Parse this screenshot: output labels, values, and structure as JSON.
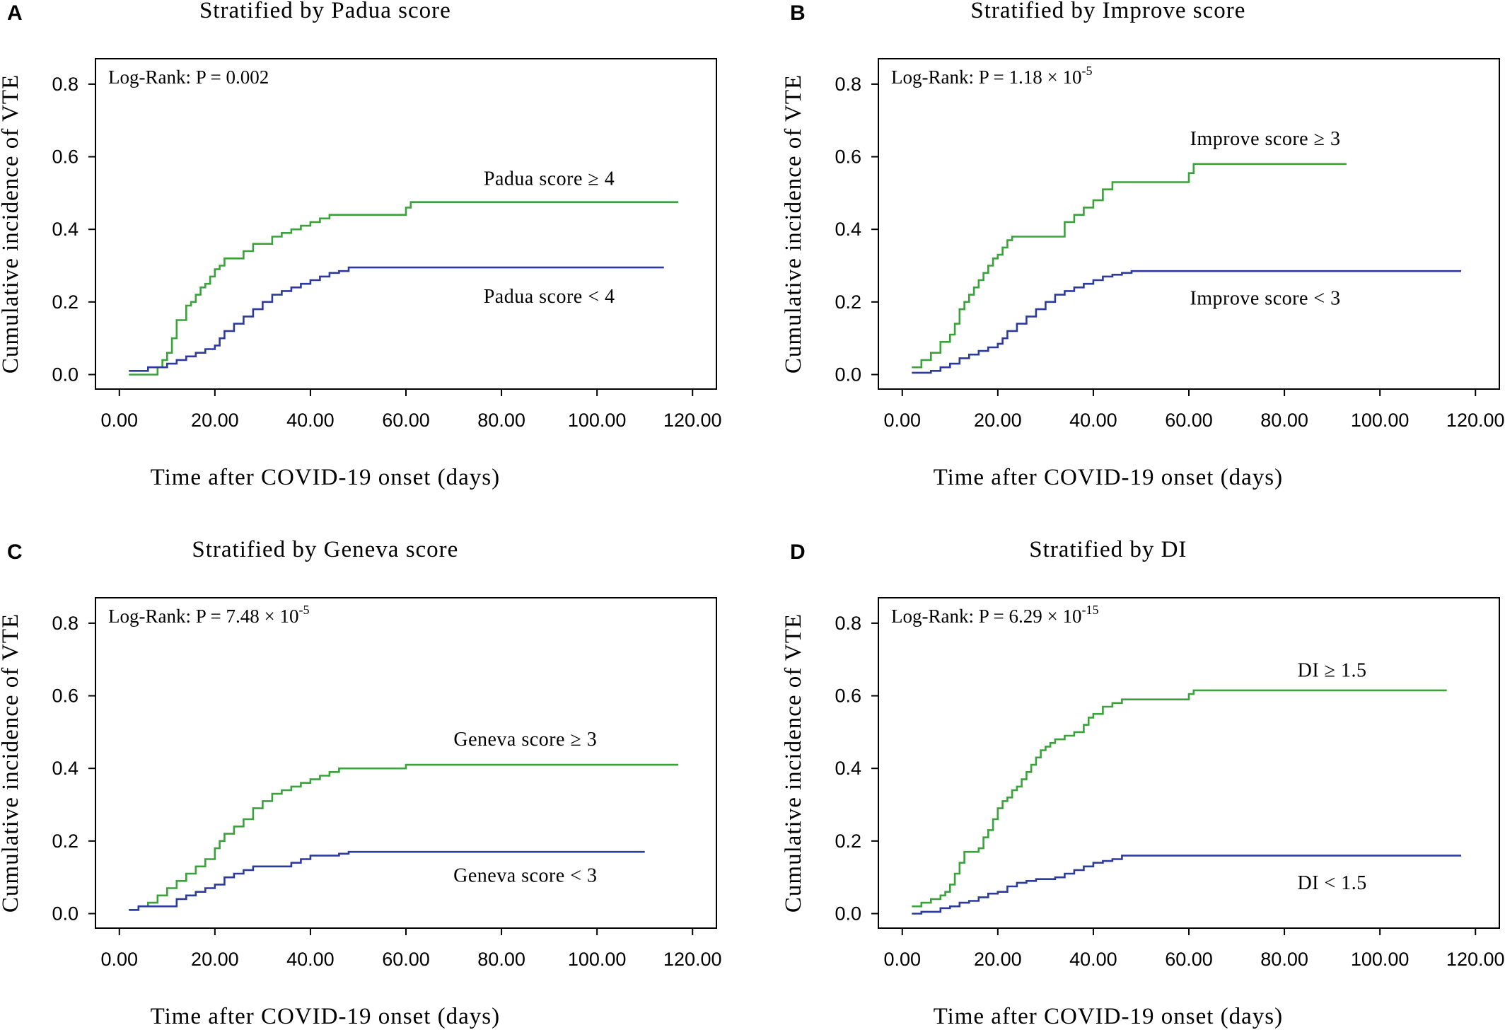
{
  "chart_data": [
    {
      "panel": "A",
      "type": "line",
      "title": "Stratified by Padua score",
      "xlabel": "Time after COVID-19 onset (days)",
      "ylabel": "Cumulative incidence of VTE",
      "xlim": [
        -5,
        125
      ],
      "ylim": [
        -0.04,
        0.87
      ],
      "xticks": [
        "0.00",
        "20.00",
        "40.00",
        "60.00",
        "80.00",
        "100.00",
        "120.00"
      ],
      "xtick_values": [
        0,
        20,
        40,
        60,
        80,
        100,
        120
      ],
      "yticks": [
        "0.0",
        "0.2",
        "0.4",
        "0.6",
        "0.8"
      ],
      "ytick_values": [
        0,
        0.2,
        0.4,
        0.6,
        0.8
      ],
      "grid": false,
      "annotation": {
        "text": "Log-Rank: P = 0.002",
        "superscript": ""
      },
      "series": [
        {
          "name": "Padua score ≥ 4",
          "color": "#3aa23a",
          "x": [
            2,
            4,
            6,
            8,
            9,
            10,
            11,
            12,
            14,
            15,
            16,
            17,
            18,
            19,
            20,
            21,
            22,
            24,
            26,
            28,
            30,
            32,
            34,
            36,
            38,
            40,
            42,
            44,
            46,
            58,
            60,
            61,
            70,
            117
          ],
          "y": [
            0.0,
            0.0,
            0.0,
            0.02,
            0.04,
            0.06,
            0.1,
            0.15,
            0.19,
            0.2,
            0.22,
            0.24,
            0.25,
            0.27,
            0.29,
            0.3,
            0.32,
            0.32,
            0.34,
            0.36,
            0.36,
            0.38,
            0.39,
            0.4,
            0.41,
            0.42,
            0.43,
            0.44,
            0.44,
            0.44,
            0.46,
            0.475,
            0.475,
            0.475
          ],
          "label_x": 90,
          "label_y": 0.54
        },
        {
          "name": "Padua score < 4",
          "color": "#2c3a9e",
          "x": [
            2,
            4,
            6,
            8,
            10,
            12,
            14,
            16,
            18,
            20,
            21,
            22,
            24,
            26,
            28,
            30,
            32,
            34,
            36,
            38,
            40,
            42,
            44,
            46,
            48,
            60,
            114
          ],
          "y": [
            0.01,
            0.01,
            0.02,
            0.02,
            0.03,
            0.04,
            0.05,
            0.06,
            0.07,
            0.08,
            0.1,
            0.12,
            0.14,
            0.16,
            0.18,
            0.2,
            0.22,
            0.23,
            0.24,
            0.25,
            0.26,
            0.27,
            0.28,
            0.285,
            0.295,
            0.295,
            0.295
          ],
          "label_x": 90,
          "label_y": 0.215
        }
      ]
    },
    {
      "panel": "B",
      "type": "line",
      "title": "Stratified by Improve score",
      "xlabel": "Time after COVID-19 onset (days)",
      "ylabel": "Cumulative incidence of VTE",
      "xlim": [
        -5,
        125
      ],
      "ylim": [
        -0.04,
        0.87
      ],
      "xticks": [
        "0.00",
        "20.00",
        "40.00",
        "60.00",
        "80.00",
        "100.00",
        "120.00"
      ],
      "xtick_values": [
        0,
        20,
        40,
        60,
        80,
        100,
        120
      ],
      "yticks": [
        "0.0",
        "0.2",
        "0.4",
        "0.6",
        "0.8"
      ],
      "ytick_values": [
        0,
        0.2,
        0.4,
        0.6,
        0.8
      ],
      "grid": false,
      "annotation": {
        "text": "Log-Rank: P = 1.18 × 10",
        "superscript": "-5"
      },
      "series": [
        {
          "name": "Improve score ≥ 3",
          "color": "#3aa23a",
          "x": [
            2,
            4,
            6,
            8,
            10,
            11,
            12,
            13,
            14,
            15,
            16,
            17,
            18,
            19,
            20,
            21,
            22,
            23,
            24,
            32,
            34,
            36,
            38,
            40,
            42,
            44,
            58,
            60,
            61,
            93
          ],
          "y": [
            0.02,
            0.04,
            0.06,
            0.09,
            0.11,
            0.14,
            0.18,
            0.2,
            0.22,
            0.24,
            0.26,
            0.28,
            0.3,
            0.32,
            0.33,
            0.35,
            0.37,
            0.38,
            0.38,
            0.38,
            0.42,
            0.44,
            0.46,
            0.48,
            0.51,
            0.53,
            0.53,
            0.555,
            0.58,
            0.58
          ],
          "label_x": 76,
          "label_y": 0.65
        },
        {
          "name": "Improve score < 3",
          "color": "#2c3a9e",
          "x": [
            2,
            4,
            6,
            8,
            10,
            12,
            14,
            16,
            18,
            20,
            21,
            22,
            24,
            26,
            28,
            30,
            32,
            34,
            36,
            38,
            40,
            42,
            44,
            46,
            48,
            60,
            117
          ],
          "y": [
            0.005,
            0.005,
            0.01,
            0.02,
            0.03,
            0.045,
            0.055,
            0.065,
            0.075,
            0.085,
            0.1,
            0.12,
            0.14,
            0.16,
            0.18,
            0.2,
            0.22,
            0.23,
            0.24,
            0.25,
            0.26,
            0.27,
            0.275,
            0.28,
            0.285,
            0.285,
            0.285
          ],
          "label_x": 76,
          "label_y": 0.21
        }
      ]
    },
    {
      "panel": "C",
      "type": "line",
      "title": "Stratified by Geneva score",
      "xlabel": "Time after COVID-19 onset (days)",
      "ylabel": "Cumulative incidence of VTE",
      "xlim": [
        -5,
        125
      ],
      "ylim": [
        -0.04,
        0.87
      ],
      "xticks": [
        "0.00",
        "20.00",
        "40.00",
        "60.00",
        "80.00",
        "100.00",
        "120.00"
      ],
      "xtick_values": [
        0,
        20,
        40,
        60,
        80,
        100,
        120
      ],
      "yticks": [
        "0.0",
        "0.2",
        "0.4",
        "0.6",
        "0.8"
      ],
      "ytick_values": [
        0,
        0.2,
        0.4,
        0.6,
        0.8
      ],
      "grid": false,
      "annotation": {
        "text": "Log-Rank: P = 7.48 × 10",
        "superscript": "-5"
      },
      "series": [
        {
          "name": "Geneva score ≥ 3",
          "color": "#3aa23a",
          "x": [
            2,
            4,
            6,
            8,
            10,
            12,
            14,
            16,
            18,
            20,
            21,
            22,
            24,
            26,
            28,
            30,
            32,
            34,
            36,
            38,
            40,
            42,
            44,
            46,
            58,
            60,
            117
          ],
          "y": [
            0.01,
            0.02,
            0.03,
            0.05,
            0.07,
            0.09,
            0.11,
            0.13,
            0.15,
            0.18,
            0.2,
            0.22,
            0.24,
            0.26,
            0.29,
            0.31,
            0.33,
            0.34,
            0.35,
            0.36,
            0.37,
            0.38,
            0.39,
            0.4,
            0.4,
            0.41,
            0.41
          ],
          "label_x": 85,
          "label_y": 0.48
        },
        {
          "name": "Geneva score < 3",
          "color": "#2c3a9e",
          "x": [
            2,
            4,
            8,
            12,
            14,
            16,
            18,
            20,
            22,
            24,
            26,
            28,
            32,
            36,
            38,
            40,
            42,
            46,
            48,
            60,
            110
          ],
          "y": [
            0.01,
            0.02,
            0.02,
            0.04,
            0.05,
            0.06,
            0.07,
            0.08,
            0.1,
            0.11,
            0.12,
            0.13,
            0.13,
            0.14,
            0.15,
            0.16,
            0.16,
            0.165,
            0.17,
            0.17,
            0.17
          ],
          "label_x": 85,
          "label_y": 0.105
        }
      ]
    },
    {
      "panel": "D",
      "type": "line",
      "title": "Stratified by DI",
      "xlabel": "Time after COVID-19 onset (days)",
      "ylabel": "Cumulative incidence of VTE",
      "xlim": [
        -5,
        125
      ],
      "ylim": [
        -0.04,
        0.87
      ],
      "xticks": [
        "0.00",
        "20.00",
        "40.00",
        "60.00",
        "80.00",
        "100.00",
        "120.00"
      ],
      "xtick_values": [
        0,
        20,
        40,
        60,
        80,
        100,
        120
      ],
      "yticks": [
        "0.0",
        "0.2",
        "0.4",
        "0.6",
        "0.8"
      ],
      "ytick_values": [
        0,
        0.2,
        0.4,
        0.6,
        0.8
      ],
      "grid": false,
      "annotation": {
        "text": "Log-Rank: P = 6.29 × 10",
        "superscript": "-15"
      },
      "series": [
        {
          "name": "DI ≥ 1.5",
          "color": "#3aa23a",
          "x": [
            2,
            4,
            6,
            8,
            9,
            10,
            11,
            12,
            13,
            14,
            16,
            17,
            18,
            19,
            20,
            21,
            22,
            23,
            24,
            25,
            26,
            27,
            28,
            29,
            30,
            31,
            32,
            34,
            36,
            38,
            39,
            40,
            42,
            44,
            46,
            58,
            60,
            61,
            114
          ],
          "y": [
            0.02,
            0.03,
            0.04,
            0.05,
            0.06,
            0.08,
            0.11,
            0.14,
            0.17,
            0.17,
            0.18,
            0.21,
            0.23,
            0.26,
            0.29,
            0.31,
            0.32,
            0.34,
            0.35,
            0.37,
            0.39,
            0.41,
            0.43,
            0.45,
            0.46,
            0.47,
            0.48,
            0.49,
            0.5,
            0.52,
            0.54,
            0.55,
            0.57,
            0.58,
            0.59,
            0.59,
            0.605,
            0.615,
            0.615
          ],
          "label_x": 90,
          "label_y": 0.67
        },
        {
          "name": "DI < 1.5",
          "color": "#2c3a9e",
          "x": [
            2,
            4,
            8,
            10,
            12,
            14,
            16,
            18,
            20,
            22,
            24,
            26,
            28,
            32,
            34,
            36,
            38,
            40,
            42,
            44,
            46,
            60,
            117
          ],
          "y": [
            0.0,
            0.005,
            0.015,
            0.02,
            0.03,
            0.035,
            0.045,
            0.055,
            0.06,
            0.075,
            0.085,
            0.09,
            0.095,
            0.1,
            0.11,
            0.12,
            0.13,
            0.14,
            0.145,
            0.15,
            0.16,
            0.16,
            0.16
          ],
          "label_x": 90,
          "label_y": 0.085
        }
      ]
    }
  ]
}
